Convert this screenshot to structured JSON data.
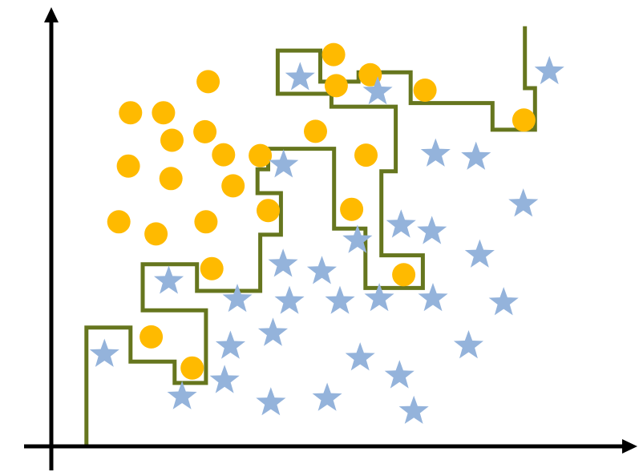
{
  "chart_data": {
    "type": "scatter",
    "title": "",
    "xlabel": "",
    "ylabel": "",
    "xlim": [
      0,
      100
    ],
    "ylim": [
      0,
      100
    ],
    "grid": false,
    "legend": "none",
    "colors": {
      "axis": "#000000",
      "circle": "#FFBA00",
      "star": "#94B3DB",
      "boundary": "#66761E"
    },
    "series": [
      {
        "marker": "circle",
        "points": [
          [
            53.1,
            97.0
          ],
          [
            60.0,
            92.0
          ],
          [
            53.6,
            89.3
          ],
          [
            70.3,
            88.2
          ],
          [
            29.5,
            90.3
          ],
          [
            21.1,
            82.6
          ],
          [
            14.9,
            82.6
          ],
          [
            28.9,
            77.9
          ],
          [
            49.7,
            78.0
          ],
          [
            22.7,
            75.8
          ],
          [
            32.4,
            72.2
          ],
          [
            39.3,
            72.0
          ],
          [
            59.2,
            72.1
          ],
          [
            14.5,
            69.4
          ],
          [
            22.5,
            66.3
          ],
          [
            34.2,
            64.5
          ],
          [
            56.5,
            58.7
          ],
          [
            40.8,
            58.4
          ],
          [
            12.7,
            55.6
          ],
          [
            29.1,
            55.6
          ],
          [
            19.7,
            52.6
          ],
          [
            30.2,
            44.0
          ],
          [
            66.3,
            42.5
          ],
          [
            18.8,
            27.1
          ],
          [
            26.5,
            19.4
          ],
          [
            88.9,
            80.8
          ]
        ]
      },
      {
        "marker": "star",
        "points": [
          [
            46.8,
            91.3
          ],
          [
            61.4,
            87.8
          ],
          [
            93.7,
            92.8
          ],
          [
            43.7,
            69.7
          ],
          [
            72.3,
            72.4
          ],
          [
            79.9,
            71.6
          ],
          [
            88.8,
            60.0
          ],
          [
            65.8,
            54.8
          ],
          [
            71.6,
            53.2
          ],
          [
            57.6,
            51.0
          ],
          [
            80.6,
            47.4
          ],
          [
            43.6,
            45.1
          ],
          [
            50.9,
            43.3
          ],
          [
            22.1,
            40.9
          ],
          [
            35.0,
            36.4
          ],
          [
            44.8,
            35.9
          ],
          [
            54.3,
            35.9
          ],
          [
            61.7,
            36.6
          ],
          [
            71.8,
            36.6
          ],
          [
            85.1,
            35.6
          ],
          [
            41.7,
            28.0
          ],
          [
            33.7,
            24.8
          ],
          [
            10.0,
            22.8
          ],
          [
            78.5,
            24.9
          ],
          [
            58.1,
            21.9
          ],
          [
            65.5,
            17.5
          ],
          [
            32.6,
            16.3
          ],
          [
            24.6,
            12.3
          ],
          [
            51.9,
            11.9
          ],
          [
            41.3,
            10.8
          ],
          [
            68.2,
            8.7
          ]
        ]
      }
    ],
    "boundary": [
      [
        0,
        0
      ],
      [
        6.6,
        0
      ],
      [
        6.6,
        29.4
      ],
      [
        14.9,
        29.4
      ],
      [
        14.9,
        21.0
      ],
      [
        23.2,
        21.0
      ],
      [
        23.2,
        15.7
      ],
      [
        29.1,
        15.7
      ],
      [
        29.1,
        33.7
      ],
      [
        17.2,
        33.7
      ],
      [
        17.2,
        45.1
      ],
      [
        27.4,
        45.1
      ],
      [
        27.4,
        38.5
      ],
      [
        39.3,
        38.5
      ],
      [
        39.3,
        52.4
      ],
      [
        43.2,
        52.4
      ],
      [
        43.2,
        62.7
      ],
      [
        38.8,
        62.7
      ],
      [
        38.8,
        68.6
      ],
      [
        40.8,
        68.6
      ],
      [
        40.8,
        73.7
      ],
      [
        53.2,
        73.7
      ],
      [
        53.2,
        53.9
      ],
      [
        59.1,
        53.9
      ],
      [
        59.1,
        39.2
      ],
      [
        69.9,
        39.2
      ],
      [
        69.9,
        47.3
      ],
      [
        62.1,
        47.3
      ],
      [
        62.1,
        68.1
      ],
      [
        64.8,
        68.1
      ],
      [
        64.8,
        84.1
      ],
      [
        52.7,
        84.1
      ],
      [
        52.7,
        87.3
      ],
      [
        42.6,
        87.3
      ],
      [
        42.6,
        98.0
      ],
      [
        50.6,
        98.0
      ],
      [
        50.6,
        90.3
      ],
      [
        57.8,
        90.3
      ],
      [
        57.8,
        92.6
      ],
      [
        67.6,
        92.6
      ],
      [
        67.6,
        85.0
      ],
      [
        83.0,
        85.0
      ],
      [
        83.0,
        78.4
      ],
      [
        91.0,
        78.4
      ],
      [
        91.0,
        88.7
      ],
      [
        89.1,
        88.7
      ],
      [
        89.1,
        104.0
      ]
    ]
  }
}
